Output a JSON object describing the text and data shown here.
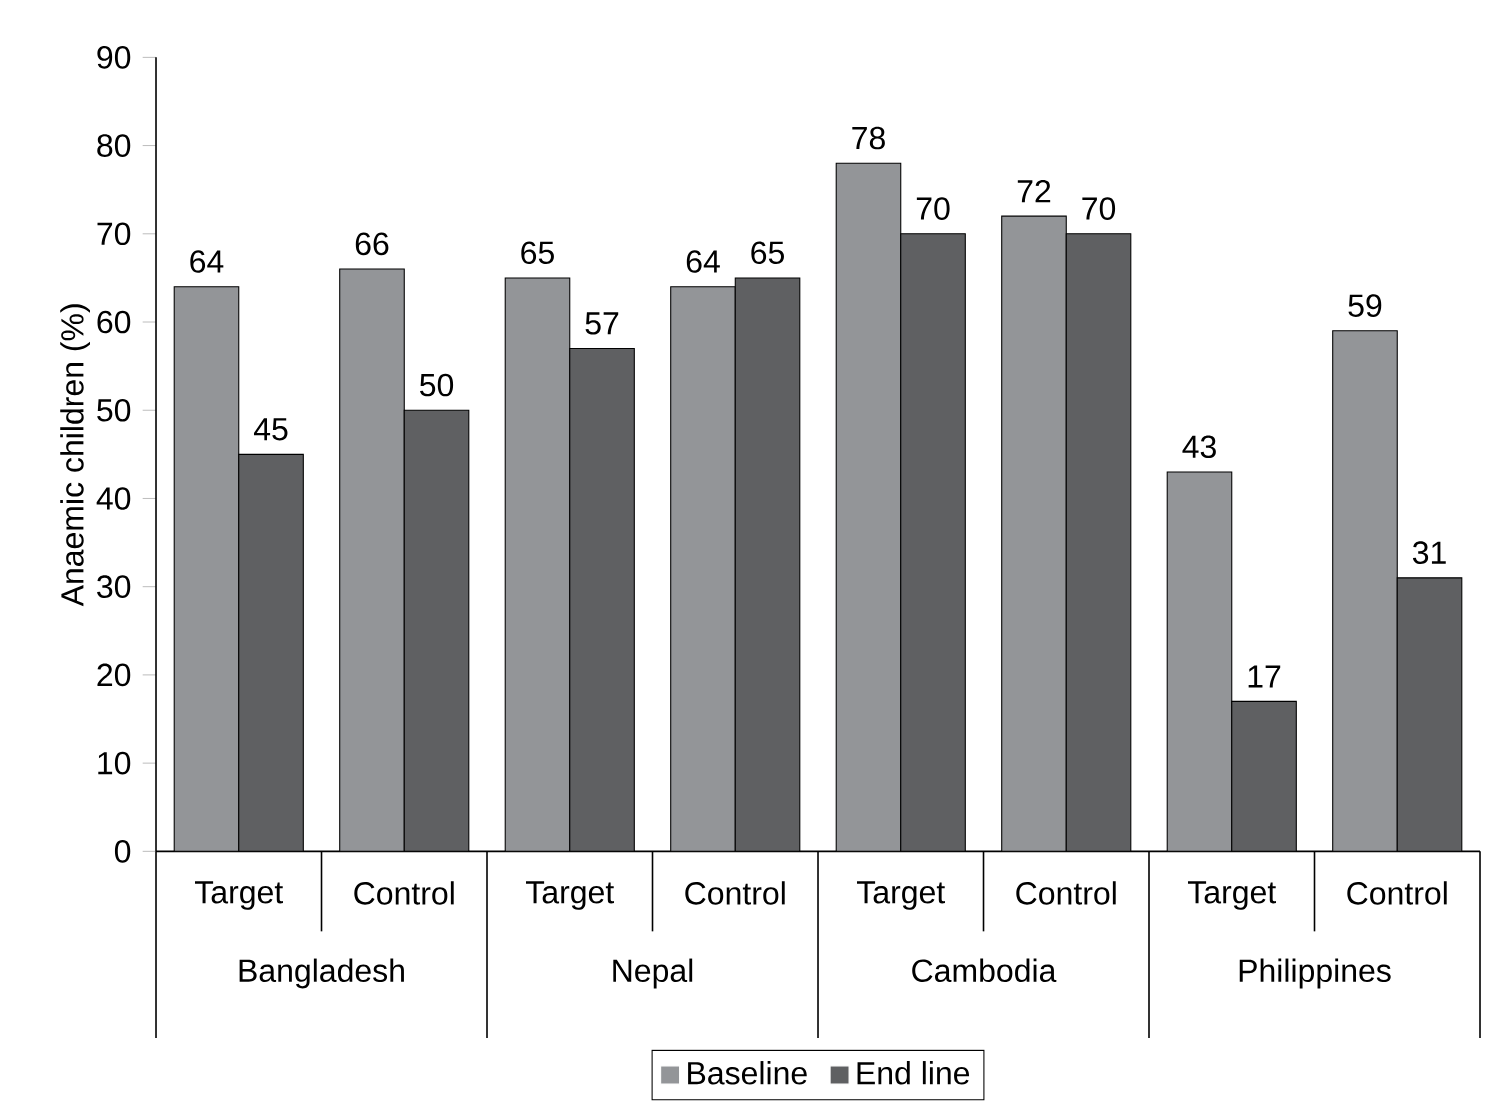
{
  "chart_data": {
    "type": "bar",
    "ylabel": "Anaemic children (%)",
    "categories": [
      "Target",
      "Control",
      "Target",
      "Control",
      "Target",
      "Control",
      "Target",
      "Control"
    ],
    "annotations": [
      "Bangladesh",
      "Nepal",
      "Cambodia",
      "Philippines"
    ],
    "series": [
      {
        "name": "Baseline",
        "color": "#939598",
        "values": [
          64,
          66,
          65,
          64,
          78,
          72,
          43,
          59
        ]
      },
      {
        "name": "End line",
        "color": "#5f6062",
        "values": [
          45,
          50,
          57,
          65,
          70,
          70,
          17,
          31
        ]
      }
    ],
    "ylim": [
      0,
      90
    ],
    "yticks": [
      0,
      10,
      20,
      30,
      40,
      50,
      60,
      70,
      80,
      90
    ],
    "data_labels": true,
    "legend": "bottom"
  }
}
